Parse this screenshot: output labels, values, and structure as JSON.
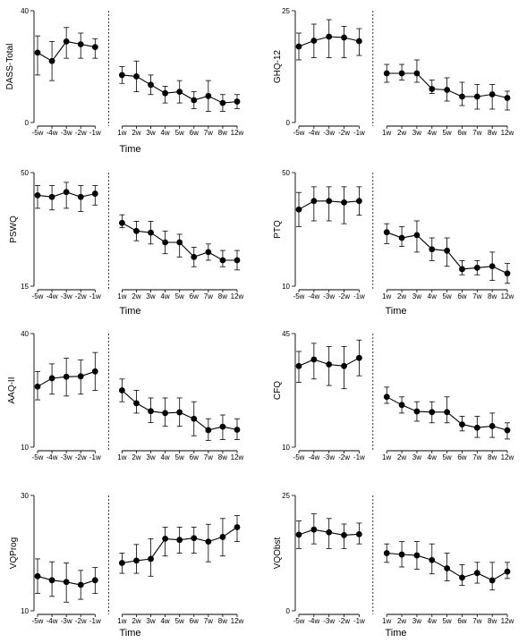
{
  "chart_data": [
    {
      "type": "line",
      "ylabel": "DASS-Total",
      "xlabel": "Time",
      "ylim": [
        0,
        40
      ],
      "y_ticks": [
        "0",
        "40"
      ],
      "categories": [
        "-5w",
        "-4w",
        "-3w",
        "-2w",
        "-1w",
        "1w",
        "2w",
        "3w",
        "4w",
        "5w",
        "6w",
        "7w",
        "8w",
        "12w"
      ],
      "values": [
        25,
        22,
        29,
        28,
        27,
        17,
        16.5,
        13.5,
        10.5,
        11,
        8,
        9.5,
        7,
        7.5
      ],
      "lower": [
        17,
        15,
        23,
        23,
        23,
        14,
        11,
        10,
        7,
        7,
        5,
        4,
        4,
        5
      ],
      "upper": [
        31,
        29,
        34,
        32,
        30,
        20,
        22,
        17,
        13,
        15,
        11,
        15,
        10,
        10
      ],
      "split_after": 4,
      "legend": "none",
      "grid": false
    },
    {
      "type": "line",
      "ylabel": "GHQ-12",
      "xlabel": "",
      "ylim": [
        0,
        25
      ],
      "y_ticks": [
        "0",
        "25"
      ],
      "categories": [
        "-5w",
        "-4w",
        "-3w",
        "-2w",
        "-1w",
        "1w",
        "2w",
        "3w",
        "4w",
        "5w",
        "6w",
        "7w",
        "8w",
        "12w"
      ],
      "values": [
        17,
        18.3,
        19.2,
        19,
        18.2,
        11,
        11,
        11,
        7.5,
        7.3,
        5.8,
        5.8,
        6.3,
        5.5
      ],
      "lower": [
        14,
        14.5,
        14.5,
        14.5,
        15,
        9,
        9.5,
        9,
        6.5,
        4.8,
        3.8,
        3,
        3,
        2.8
      ],
      "upper": [
        20,
        22,
        23,
        21.5,
        21,
        13,
        13,
        14,
        9.5,
        10,
        9,
        8.5,
        8.5,
        7
      ],
      "split_after": 4,
      "legend": "none",
      "grid": false
    },
    {
      "type": "line",
      "ylabel": "PSWQ",
      "xlabel": "Time",
      "ylim": [
        15,
        50
      ],
      "y_ticks": [
        "15",
        "50"
      ],
      "categories": [
        "-5w",
        "-4w",
        "-3w",
        "-2w",
        "-1w",
        "1w",
        "2w",
        "3w",
        "4w",
        "5w",
        "6w",
        "7w",
        "8w",
        "12w"
      ],
      "values": [
        43,
        42.5,
        44,
        42.5,
        43.5,
        34.5,
        32,
        31.5,
        28.5,
        28.5,
        24,
        25.5,
        23,
        23
      ],
      "lower": [
        39,
        38.5,
        39,
        38,
        40,
        33,
        29,
        28,
        25,
        24,
        21,
        23,
        21,
        20
      ],
      "upper": [
        46,
        46,
        47,
        46,
        46,
        37,
        35,
        35,
        32,
        31,
        27,
        28,
        26,
        26
      ],
      "split_after": 4,
      "legend": "none",
      "grid": false
    },
    {
      "type": "line",
      "ylabel": "PTQ",
      "xlabel": "Time",
      "ylim": [
        10,
        50
      ],
      "y_ticks": [
        "10",
        "50"
      ],
      "categories": [
        "-5w",
        "-4w",
        "-3w",
        "-2w",
        "-1w",
        "1w",
        "2w",
        "3w",
        "4w",
        "5w",
        "6w",
        "7w",
        "8w",
        "12w"
      ],
      "values": [
        37,
        40,
        40,
        39.5,
        40,
        29,
        27,
        28,
        23,
        22.5,
        16,
        16.5,
        17,
        14.5
      ],
      "lower": [
        31,
        33,
        33,
        32,
        35,
        25,
        24,
        22,
        19,
        17,
        14,
        14,
        12,
        11
      ],
      "upper": [
        43,
        45,
        45,
        45,
        45,
        32,
        31,
        33,
        27,
        27,
        19,
        19,
        22,
        18
      ],
      "split_after": 4,
      "legend": "none",
      "grid": false
    },
    {
      "type": "line",
      "ylabel": "AAQ-II",
      "xlabel": "",
      "ylim": [
        10,
        40
      ],
      "y_ticks": [
        "10",
        "40"
      ],
      "categories": [
        "-5w",
        "-4w",
        "-3w",
        "-2w",
        "-1w",
        "1w",
        "2w",
        "3w",
        "4w",
        "5w",
        "6w",
        "7w",
        "8w",
        "12w"
      ],
      "values": [
        26,
        28.2,
        28.6,
        28.7,
        30,
        25,
        21.6,
        19.5,
        19,
        19.2,
        17.5,
        14.5,
        15.4,
        14.6
      ],
      "lower": [
        22.5,
        24,
        23.5,
        24,
        25,
        22,
        19,
        16.5,
        15.5,
        15.5,
        13,
        11.8,
        12,
        12
      ],
      "upper": [
        30,
        32,
        33.5,
        33,
        35,
        28,
        25,
        23,
        23,
        23,
        22,
        17.5,
        18.5,
        17.5
      ],
      "split_after": 4,
      "legend": "none",
      "grid": false
    },
    {
      "type": "line",
      "ylabel": "CFQ",
      "xlabel": "",
      "ylim": [
        10,
        45
      ],
      "y_ticks": [
        "10",
        "45"
      ],
      "categories": [
        "-5w",
        "-4w",
        "-3w",
        "-2w",
        "-1w",
        "1w",
        "2w",
        "3w",
        "4w",
        "5w",
        "6w",
        "7w",
        "8w",
        "12w"
      ],
      "values": [
        35,
        37,
        35.5,
        35,
        37.5,
        25.5,
        23,
        21,
        20.8,
        20.8,
        17,
        16,
        16.5,
        15.2
      ],
      "lower": [
        30,
        31,
        29,
        28,
        32,
        23.5,
        20.5,
        18,
        17.5,
        17.5,
        15,
        13,
        13,
        12.5
      ],
      "upper": [
        39.5,
        42,
        41,
        41,
        43,
        28.5,
        25.5,
        24,
        24,
        25.5,
        19.5,
        19.5,
        20.5,
        17.5
      ],
      "split_after": 4,
      "legend": "none",
      "grid": false
    },
    {
      "type": "line",
      "ylabel": "VQProg",
      "xlabel": "Time",
      "ylim": [
        10,
        30
      ],
      "y_ticks": [
        "10",
        "30"
      ],
      "categories": [
        "-5w",
        "-4w",
        "-3w",
        "-2w",
        "-1w",
        "1w",
        "2w",
        "3w",
        "4w",
        "5w",
        "6w",
        "7w",
        "8w",
        "12w"
      ],
      "values": [
        16,
        15.3,
        15,
        14.5,
        15.3,
        18.3,
        18.7,
        19,
        22.5,
        22.3,
        22.6,
        22,
        22.8,
        24.5
      ],
      "lower": [
        13,
        12.5,
        11.5,
        12,
        13,
        16.5,
        16.5,
        16,
        19.5,
        20,
        20,
        18.5,
        19.5,
        22
      ],
      "upper": [
        19,
        18.5,
        18.3,
        17,
        17.5,
        20,
        21.5,
        22.5,
        24.5,
        24.5,
        24.5,
        25,
        26,
        26.5
      ],
      "split_after": 4,
      "legend": "none",
      "grid": false
    },
    {
      "type": "line",
      "ylabel": "VQObst",
      "xlabel": "Time",
      "ylim": [
        0,
        25
      ],
      "y_ticks": [
        "0",
        "25"
      ],
      "categories": [
        "-5w",
        "-4w",
        "-3w",
        "-2w",
        "-1w",
        "1w",
        "2w",
        "3w",
        "4w",
        "5w",
        "6w",
        "7w",
        "8w",
        "12w"
      ],
      "values": [
        16.5,
        17.6,
        17,
        16.4,
        16.6,
        12.5,
        12.2,
        12,
        11,
        9.2,
        7.2,
        8.2,
        6.6,
        8.5
      ],
      "lower": [
        13.5,
        14.5,
        13.5,
        13.5,
        14.5,
        10.5,
        9.5,
        9,
        8,
        6.5,
        5.5,
        6,
        4.5,
        7
      ],
      "upper": [
        19.5,
        21,
        20,
        18.8,
        19,
        14.5,
        15,
        15,
        14.5,
        12.5,
        10,
        10.5,
        10.5,
        10.5
      ],
      "split_after": 4,
      "legend": "none",
      "grid": false
    }
  ]
}
